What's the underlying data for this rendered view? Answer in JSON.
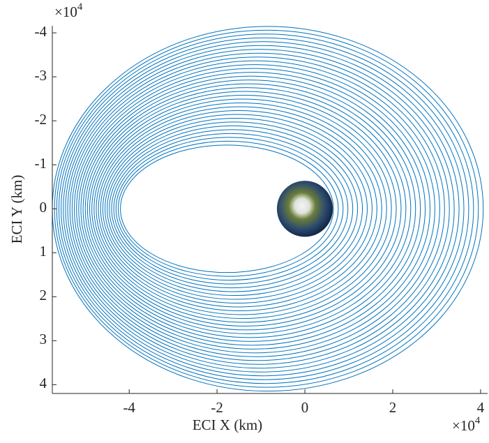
{
  "chart_data": {
    "type": "orbit",
    "xlabel": "ECI X (km)",
    "ylabel": "ECI Y (km)",
    "x_exponent": {
      "base": "×10",
      "power": "4"
    },
    "y_exponent": {
      "base": "×10",
      "power": "4"
    },
    "xlim": [
      -57500,
      41600
    ],
    "ylim": [
      -41600,
      42000
    ],
    "y_reversed": true,
    "xticks": [
      {
        "value": -40000,
        "label": "-4"
      },
      {
        "value": -20000,
        "label": "-2"
      },
      {
        "value": 0,
        "label": "0"
      },
      {
        "value": 20000,
        "label": "2"
      },
      {
        "value": 40000,
        "label": "4"
      }
    ],
    "yticks": [
      {
        "value": -40000,
        "label": "-4"
      },
      {
        "value": -30000,
        "label": "-3"
      },
      {
        "value": -20000,
        "label": "-2"
      },
      {
        "value": -10000,
        "label": "-1"
      },
      {
        "value": 0,
        "label": "0"
      },
      {
        "value": 10000,
        "label": "1"
      },
      {
        "value": 20000,
        "label": "2"
      },
      {
        "value": 30000,
        "label": "3"
      },
      {
        "value": 40000,
        "label": "4"
      }
    ],
    "color": "#0072bd",
    "earth_radius": 6371,
    "orbit_x_min": [
      -42000,
      -42500,
      -43000,
      -43500,
      -44000,
      -44500,
      -45000,
      -45500,
      -46000,
      -46500,
      -47000,
      -47500,
      -48000,
      -48500,
      -49000,
      -49500,
      -50000,
      -50500,
      -51000,
      -51500,
      -52000,
      -52500,
      -53000,
      -53500,
      -54000,
      -54500,
      -55000,
      -55500,
      -56000,
      -56500,
      -57000,
      -57500
    ],
    "orbit_x_max": [
      6500,
      7600,
      8700,
      9800,
      10900,
      12000,
      13100,
      14200,
      15300,
      16400,
      17500,
      18600,
      19700,
      20800,
      21900,
      23000,
      24100,
      25200,
      26300,
      27400,
      28500,
      29600,
      30700,
      31800,
      32900,
      34000,
      35100,
      36200,
      37300,
      38400,
      39500,
      40600
    ],
    "orbit_y_half": [
      14500,
      15370,
      16240,
      17110,
      17980,
      18850,
      19720,
      20590,
      21460,
      22330,
      23200,
      24070,
      24940,
      25810,
      26680,
      27550,
      28420,
      29290,
      30160,
      31030,
      31900,
      32770,
      33640,
      34510,
      35380,
      36250,
      37120,
      37990,
      38860,
      39730,
      40600,
      41470
    ]
  }
}
